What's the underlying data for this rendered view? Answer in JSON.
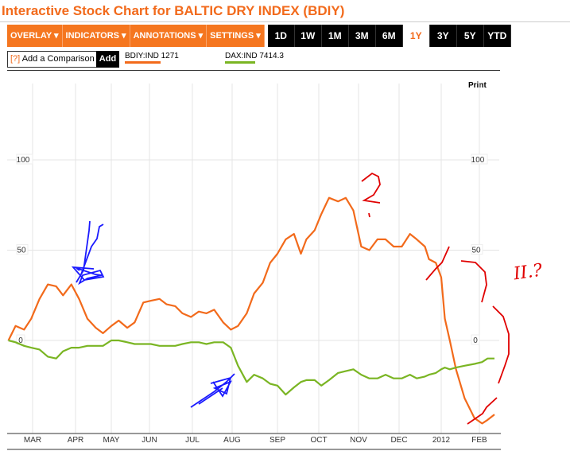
{
  "title": "Interactive Stock Chart for BALTIC DRY INDEX (BDIY)",
  "toolbar": {
    "menus": [
      "OVERLAY ▾",
      "INDICATORS ▾",
      "ANNOTATIONS ▾",
      "SETTINGS ▾"
    ],
    "ranges": [
      "1D",
      "1W",
      "1M",
      "3M",
      "6M",
      "1Y",
      "3Y",
      "5Y",
      "YTD"
    ],
    "active_range": "1Y"
  },
  "comparison": {
    "help": "[?]",
    "label": "Add a Comparison",
    "add": "Add"
  },
  "legend": [
    {
      "symbol": "BDIY:IND",
      "value": "1271",
      "color": "#f26a1b"
    },
    {
      "symbol": "DAX:IND",
      "value": "7414.3",
      "color": "#7ab523"
    }
  ],
  "print_label": "Print",
  "chart_data": {
    "type": "line",
    "x_tick_labels": [
      "MAR",
      "APR",
      "MAY",
      "JUN",
      "JUL",
      "AUG",
      "SEP",
      "OCT",
      "NOV",
      "DEC",
      "2012",
      "FEB"
    ],
    "y_tick_labels": [
      "100",
      "50",
      "0"
    ],
    "yticks": [
      100,
      50,
      0
    ],
    "ylim": [
      -50,
      135
    ],
    "grid": true,
    "x": [
      "2011-02-12",
      "2011-02-17",
      "2011-02-23",
      "2011-02-28",
      "2011-03-06",
      "2011-03-12",
      "2011-03-18",
      "2011-03-23",
      "2011-03-29",
      "2011-04-04",
      "2011-04-11",
      "2011-04-18",
      "2011-04-24",
      "2011-05-01",
      "2011-05-07",
      "2011-05-14",
      "2011-05-20",
      "2011-05-27",
      "2011-06-02",
      "2011-06-08",
      "2011-06-13",
      "2011-06-19",
      "2011-06-24",
      "2011-06-30",
      "2011-07-06",
      "2011-07-12",
      "2011-07-18",
      "2011-07-25",
      "2011-07-31",
      "2011-08-05",
      "2011-08-11",
      "2011-08-16",
      "2011-08-22",
      "2011-08-27",
      "2011-09-01",
      "2011-09-07",
      "2011-09-13",
      "2011-09-18",
      "2011-09-22",
      "2011-09-28",
      "2011-10-03",
      "2011-10-09",
      "2011-10-16",
      "2011-10-22",
      "2011-10-28",
      "2011-11-03",
      "2011-11-09",
      "2011-11-15",
      "2011-11-21",
      "2011-11-27",
      "2011-12-03",
      "2011-12-09",
      "2011-12-14",
      "2011-12-20",
      "2011-12-23",
      "2011-12-28",
      "2012-01-01",
      "2012-01-04",
      "2012-01-08",
      "2012-01-13",
      "2012-01-20",
      "2012-01-28",
      "2012-02-03",
      "2012-02-07",
      "2012-02-12"
    ],
    "series": [
      {
        "name": "BDIY:IND",
        "color": "#f26a1b",
        "values": [
          0,
          8,
          6,
          12,
          23,
          31,
          30,
          25,
          31,
          23,
          12,
          7,
          4,
          8,
          11,
          7,
          10,
          21,
          22,
          23,
          20,
          19,
          15,
          13,
          16,
          15,
          17,
          10,
          6,
          8,
          15,
          26,
          32,
          43,
          48,
          56,
          59,
          48,
          56,
          61,
          70,
          79,
          77,
          79,
          72,
          52,
          50,
          56,
          56,
          52,
          52,
          59,
          56,
          52,
          45,
          43,
          35,
          12,
          0,
          -16,
          -32,
          -43,
          -46,
          -44,
          -41
        ]
      },
      {
        "name": "DAX:IND",
        "color": "#7ab523",
        "values": [
          0,
          -1,
          -3,
          -4,
          -5,
          -9,
          -10,
          -6,
          -4,
          -4,
          -3,
          -3,
          -3,
          0,
          0,
          -1,
          -2,
          -2,
          -2,
          -3,
          -3,
          -3,
          -2,
          -1,
          -1,
          -2,
          -1,
          -1,
          -4,
          -14,
          -23,
          -19,
          -21,
          -24,
          -25,
          -30,
          -26,
          -23,
          -22,
          -22,
          -25,
          -22,
          -18,
          -17,
          -16,
          -19,
          -21,
          -21,
          -19,
          -21,
          -21,
          -19,
          -21,
          -20,
          -19,
          -18,
          -16,
          -15,
          -16,
          -15,
          -14,
          -13,
          -12,
          -10,
          -10
        ]
      }
    ]
  },
  "annotations": {
    "handwriting": [
      "?",
      "II.?"
    ]
  }
}
